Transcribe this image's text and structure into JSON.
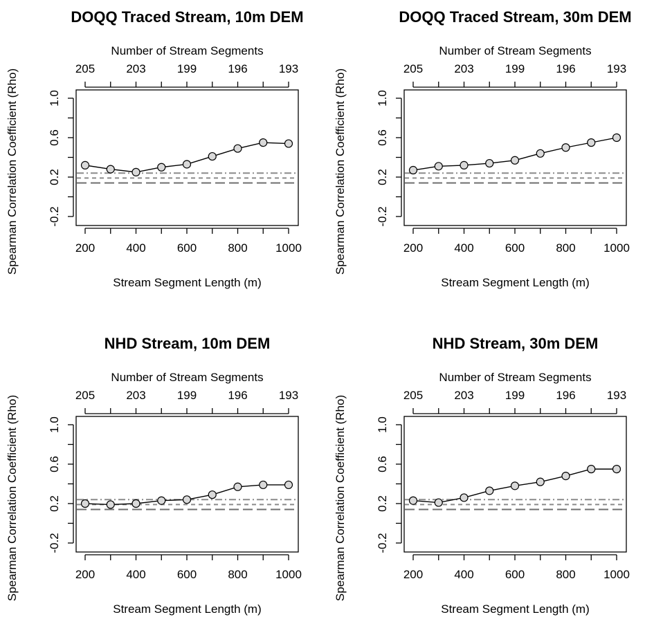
{
  "chart_data": [
    {
      "type": "line",
      "title": "DOQQ Traced Stream, 10m DEM",
      "xlabel": "Stream Segment Length (m)",
      "ylabel": "Spearman Correlation Coefficient (Rho)",
      "top_axis_label": "Number of Stream Segments",
      "xlim": [
        200,
        1000
      ],
      "ylim": [
        -0.2,
        1.0
      ],
      "x_ticks": [
        200,
        400,
        600,
        800,
        1000
      ],
      "y_ticks": [
        -0.2,
        0.2,
        0.6,
        1.0
      ],
      "top_ticks": [
        "205",
        "203",
        "199",
        "196",
        "193"
      ],
      "x": [
        200,
        300,
        400,
        500,
        600,
        700,
        800,
        900,
        1000
      ],
      "values": [
        0.32,
        0.28,
        0.25,
        0.3,
        0.33,
        0.41,
        0.49,
        0.55,
        0.54
      ],
      "reference_lines": [
        0.24,
        0.19,
        0.14
      ]
    },
    {
      "type": "line",
      "title": "DOQQ Traced Stream, 30m DEM",
      "xlabel": "Stream Segment Length (m)",
      "ylabel": "Spearman Correlation Coefficient (Rho)",
      "top_axis_label": "Number of Stream Segments",
      "xlim": [
        200,
        1000
      ],
      "ylim": [
        -0.2,
        1.0
      ],
      "x_ticks": [
        200,
        400,
        600,
        800,
        1000
      ],
      "y_ticks": [
        -0.2,
        0.2,
        0.6,
        1.0
      ],
      "top_ticks": [
        "205",
        "203",
        "199",
        "196",
        "193"
      ],
      "x": [
        200,
        300,
        400,
        500,
        600,
        700,
        800,
        900,
        1000
      ],
      "values": [
        0.27,
        0.31,
        0.32,
        0.34,
        0.37,
        0.44,
        0.5,
        0.55,
        0.6
      ],
      "reference_lines": [
        0.24,
        0.19,
        0.14
      ]
    },
    {
      "type": "line",
      "title": "NHD Stream, 10m DEM",
      "xlabel": "Stream Segment Length (m)",
      "ylabel": "Spearman Correlation Coefficient (Rho)",
      "top_axis_label": "Number of Stream Segments",
      "xlim": [
        200,
        1000
      ],
      "ylim": [
        -0.2,
        1.0
      ],
      "x_ticks": [
        200,
        400,
        600,
        800,
        1000
      ],
      "y_ticks": [
        -0.2,
        0.2,
        0.6,
        1.0
      ],
      "top_ticks": [
        "205",
        "203",
        "199",
        "196",
        "193"
      ],
      "x": [
        200,
        300,
        400,
        500,
        600,
        700,
        800,
        900,
        1000
      ],
      "values": [
        0.2,
        0.19,
        0.2,
        0.23,
        0.24,
        0.29,
        0.37,
        0.39,
        0.39
      ],
      "reference_lines": [
        0.24,
        0.19,
        0.14
      ]
    },
    {
      "type": "line",
      "title": "NHD Stream, 30m DEM",
      "xlabel": "Stream Segment Length (m)",
      "ylabel": "Spearman Correlation Coefficient (Rho)",
      "top_axis_label": "Number of Stream Segments",
      "xlim": [
        200,
        1000
      ],
      "ylim": [
        -0.2,
        1.0
      ],
      "x_ticks": [
        200,
        400,
        600,
        800,
        1000
      ],
      "y_ticks": [
        -0.2,
        0.2,
        0.6,
        1.0
      ],
      "top_ticks": [
        "205",
        "203",
        "199",
        "196",
        "193"
      ],
      "x": [
        200,
        300,
        400,
        500,
        600,
        700,
        800,
        900,
        1000
      ],
      "values": [
        0.23,
        0.21,
        0.26,
        0.33,
        0.38,
        0.42,
        0.48,
        0.55,
        0.55
      ],
      "reference_lines": [
        0.24,
        0.19,
        0.14
      ]
    }
  ]
}
